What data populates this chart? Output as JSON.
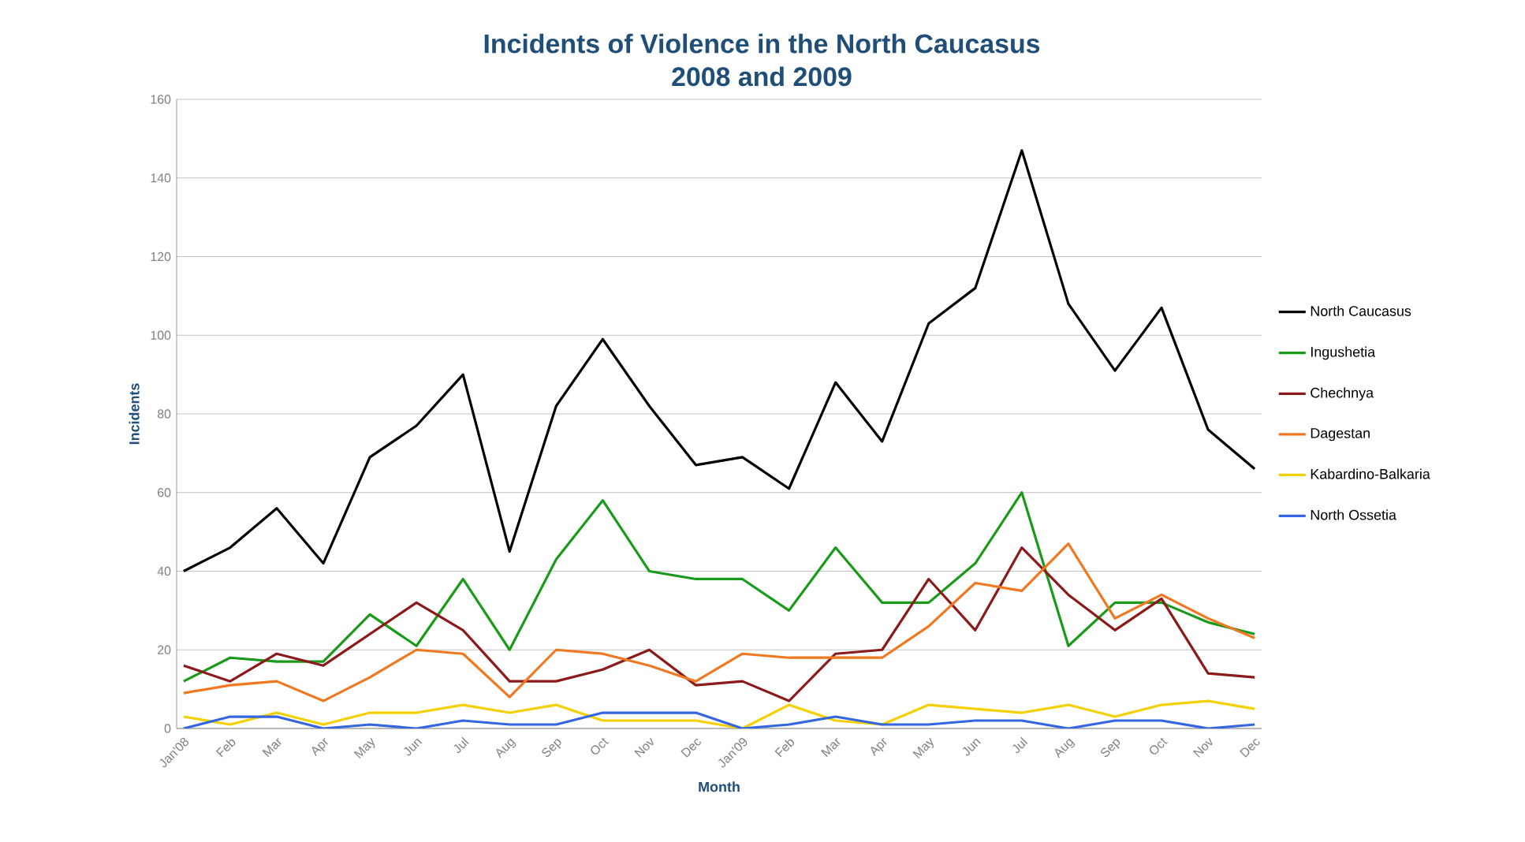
{
  "chart_data": {
    "type": "line",
    "title": "Incidents of Violence in the North Caucasus\n2008 and 2009",
    "xlabel": "Month",
    "ylabel": "Incidents",
    "categories": [
      "Jan'08",
      "Feb",
      "Mar",
      "Apr",
      "May",
      "Jun",
      "Jul",
      "Aug",
      "Sep",
      "Oct",
      "Nov",
      "Dec",
      "Jan'09",
      "Feb",
      "Mar",
      "Apr",
      "May",
      "Jun",
      "Jul",
      "Aug",
      "Sep",
      "Oct",
      "Nov",
      "Dec"
    ],
    "series": [
      {
        "name": "North Caucasus",
        "color": "#000000",
        "values": [
          40,
          46,
          56,
          42,
          69,
          77,
          90,
          45,
          82,
          99,
          82,
          67,
          69,
          61,
          88,
          73,
          103,
          112,
          147,
          108,
          91,
          107,
          76,
          66
        ]
      },
      {
        "name": "Ingushetia",
        "color": "#1a9a1a",
        "values": [
          12,
          18,
          17,
          17,
          29,
          21,
          38,
          20,
          43,
          58,
          40,
          38,
          38,
          30,
          46,
          32,
          32,
          42,
          60,
          21,
          32,
          32,
          27,
          24
        ]
      },
      {
        "name": "Chechnya",
        "color": "#8b1a1a",
        "values": [
          16,
          12,
          19,
          16,
          24,
          32,
          25,
          12,
          12,
          15,
          20,
          11,
          12,
          7,
          19,
          20,
          38,
          25,
          46,
          34,
          25,
          33,
          14,
          13
        ]
      },
      {
        "name": "Dagestan",
        "color": "#f07820",
        "values": [
          9,
          11,
          12,
          7,
          13,
          20,
          19,
          8,
          20,
          19,
          16,
          12,
          19,
          18,
          18,
          18,
          26,
          37,
          35,
          47,
          28,
          34,
          28,
          23
        ]
      },
      {
        "name": "Kabardino-Balkaria",
        "color": "#f5d000",
        "values": [
          3,
          1,
          4,
          1,
          4,
          4,
          6,
          4,
          6,
          2,
          2,
          2,
          0,
          6,
          2,
          1,
          6,
          5,
          4,
          6,
          3,
          6,
          7,
          5
        ]
      },
      {
        "name": "North Ossetia",
        "color": "#3366e0",
        "values": [
          0,
          3,
          3,
          0,
          1,
          0,
          2,
          1,
          1,
          4,
          4,
          4,
          0,
          1,
          3,
          1,
          1,
          2,
          2,
          0,
          2,
          2,
          0,
          1
        ]
      }
    ],
    "ylim": [
      0,
      160
    ],
    "yticks": [
      0,
      20,
      40,
      60,
      80,
      100,
      120,
      140,
      160
    ],
    "grid": "y",
    "legend": "right",
    "marker": "none",
    "line_style": "solid"
  }
}
